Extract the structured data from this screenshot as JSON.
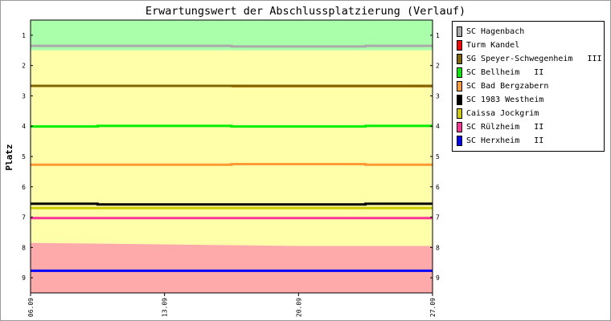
{
  "chart_data": {
    "type": "line",
    "title": "Erwartungswert der Abschlussplatzierung (Verlauf)",
    "ylabel": "Platz",
    "xlabel": "",
    "ylim": [
      0.5,
      9.5
    ],
    "y_reversed": true,
    "y_ticks": [
      1,
      2,
      3,
      4,
      5,
      6,
      7,
      8,
      9
    ],
    "x_domain": [
      0,
      3
    ],
    "x_ticks": [
      {
        "x": 0,
        "label": "06.09"
      },
      {
        "x": 1,
        "label": "13.09"
      },
      {
        "x": 2,
        "label": "20.09"
      },
      {
        "x": 3,
        "label": "27.09"
      }
    ],
    "bands": [
      {
        "color": "#aaffaa",
        "upper": [
          {
            "x": 0,
            "y": 1.5
          },
          {
            "x": 3,
            "y": 1.5
          }
        ]
      },
      {
        "color": "#ffffaa",
        "upper": [
          {
            "x": 0,
            "y": 7.85
          },
          {
            "x": 1,
            "y": 7.9
          },
          {
            "x": 2,
            "y": 7.95
          },
          {
            "x": 3,
            "y": 7.95
          }
        ]
      },
      {
        "color": "#ffaaaa",
        "upper": []
      }
    ],
    "series": [
      {
        "name": "SC Hagenbach",
        "color": "#aaaaaa",
        "points": [
          {
            "x": 0,
            "y": 1.35
          },
          {
            "x": 1.5,
            "y": 1.35
          },
          {
            "x": 1.5,
            "y": 1.37
          },
          {
            "x": 2.5,
            "y": 1.37
          },
          {
            "x": 2.5,
            "y": 1.35
          },
          {
            "x": 3,
            "y": 1.35
          }
        ]
      },
      {
        "name": "Turm Kandel",
        "color": "#cc6600",
        "points": [
          {
            "x": 1.5,
            "y": 2.68
          },
          {
            "x": 3,
            "y": 2.68
          }
        ]
      },
      {
        "name": "SG Speyer-Schwegenheim   III",
        "color": "#806600",
        "points": [
          {
            "x": 0,
            "y": 2.67
          },
          {
            "x": 3,
            "y": 2.67
          }
        ]
      },
      {
        "name": "SC Bellheim   II",
        "color": "#00ee00",
        "points": [
          {
            "x": 0,
            "y": 4.01
          },
          {
            "x": 0.5,
            "y": 4.01
          },
          {
            "x": 0.5,
            "y": 3.99
          },
          {
            "x": 1.5,
            "y": 3.99
          },
          {
            "x": 1.5,
            "y": 4.01
          },
          {
            "x": 2.5,
            "y": 4.01
          },
          {
            "x": 2.5,
            "y": 3.99
          },
          {
            "x": 3,
            "y": 3.99
          }
        ]
      },
      {
        "name": "SC Bad Bergzabern",
        "color": "#ff9933",
        "points": [
          {
            "x": 0,
            "y": 5.27
          },
          {
            "x": 1.5,
            "y": 5.27
          },
          {
            "x": 1.5,
            "y": 5.25
          },
          {
            "x": 2.5,
            "y": 5.25
          },
          {
            "x": 2.5,
            "y": 5.27
          },
          {
            "x": 3,
            "y": 5.27
          }
        ]
      },
      {
        "name": "SC 1983 Westheim",
        "color": "#000000",
        "points": [
          {
            "x": 0,
            "y": 6.56
          },
          {
            "x": 0.5,
            "y": 6.56
          },
          {
            "x": 0.5,
            "y": 6.58
          },
          {
            "x": 2.5,
            "y": 6.58
          },
          {
            "x": 2.5,
            "y": 6.56
          },
          {
            "x": 3,
            "y": 6.56
          }
        ]
      },
      {
        "name": "Caissa Jockgrim",
        "color": "#cccc00",
        "points": [
          {
            "x": 0,
            "y": 6.7
          },
          {
            "x": 3,
            "y": 6.7
          }
        ]
      },
      {
        "name": "SC Rülzheim   II",
        "color": "#ff3399",
        "points": [
          {
            "x": 0,
            "y": 7.03
          },
          {
            "x": 3,
            "y": 7.03
          }
        ]
      },
      {
        "name": "SC Herxheim   II",
        "color": "#0000ff",
        "points": [
          {
            "x": 0,
            "y": 8.77
          },
          {
            "x": 3,
            "y": 8.77
          }
        ]
      }
    ],
    "legend": {
      "placement": "right",
      "entries": [
        {
          "label": "SC Hagenbach",
          "color": "#aaaaaa"
        },
        {
          "label": "Turm Kandel",
          "color": "#ff0000"
        },
        {
          "label": "SG Speyer-Schwegenheim   III",
          "color": "#806600"
        },
        {
          "label": "SC Bellheim   II",
          "color": "#00ee00"
        },
        {
          "label": "SC Bad Bergzabern",
          "color": "#ff9933"
        },
        {
          "label": "SC 1983 Westheim",
          "color": "#000000"
        },
        {
          "label": "Caissa Jockgrim",
          "color": "#cccc00"
        },
        {
          "label": "SC Rülzheim   II",
          "color": "#ff3399"
        },
        {
          "label": "SC Herxheim   II",
          "color": "#0000ff"
        }
      ]
    },
    "grid": false
  }
}
